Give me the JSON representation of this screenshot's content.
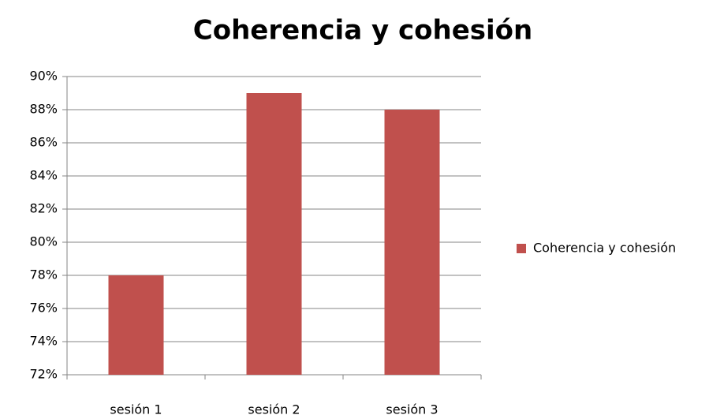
{
  "chart_data": {
    "type": "bar",
    "title": "Coherencia y cohesión",
    "categories": [
      "sesión 1",
      "sesión 2",
      "sesión 3"
    ],
    "series": [
      {
        "name": "Coherencia y cohesión",
        "color": "#c0504d",
        "values": [
          78,
          89,
          88
        ]
      }
    ],
    "ylim": [
      72,
      90
    ],
    "yticks": [
      {
        "value": 72,
        "label": "72%"
      },
      {
        "value": 74,
        "label": "74%"
      },
      {
        "value": 76,
        "label": "76%"
      },
      {
        "value": 78,
        "label": "78%"
      },
      {
        "value": 80,
        "label": "80%"
      },
      {
        "value": 82,
        "label": "82%"
      },
      {
        "value": 84,
        "label": "84%"
      },
      {
        "value": 86,
        "label": "86%"
      },
      {
        "value": 88,
        "label": "88%"
      },
      {
        "value": 90,
        "label": "90%"
      }
    ],
    "grid": true,
    "legend": "right"
  }
}
